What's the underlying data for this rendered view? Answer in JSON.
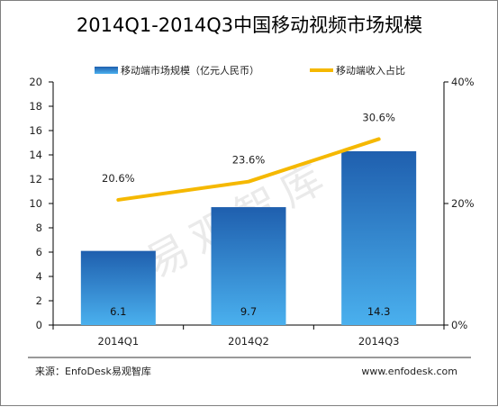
{
  "chart_data": {
    "type": "bar+line",
    "title": "2014Q1-2014Q3中国移动视频市场规模",
    "categories": [
      "2014Q1",
      "2014Q2",
      "2014Q3"
    ],
    "series": [
      {
        "name": "移动端市场规模（亿元人民币）",
        "kind": "bar",
        "axis": "left",
        "values": [
          6.1,
          9.7,
          14.3
        ],
        "labels": [
          "6.1",
          "9.7",
          "14.3"
        ]
      },
      {
        "name": "移动端收入占比",
        "kind": "line",
        "axis": "right",
        "values": [
          20.6,
          23.6,
          30.6
        ],
        "labels": [
          "20.6%",
          "23.6%",
          "30.6%"
        ]
      }
    ],
    "y_left": {
      "min": 0,
      "max": 20,
      "ticks": [
        "0",
        "2",
        "4",
        "6",
        "8",
        "10",
        "12",
        "14",
        "16",
        "18",
        "20"
      ]
    },
    "y_right": {
      "min": 0,
      "max": 40,
      "ticks": [
        "0%",
        "20%",
        "40%"
      ],
      "tick_values": [
        0,
        20,
        40
      ]
    },
    "grid": false,
    "legend_position": "top",
    "colors": {
      "bar_top": "#1f5fae",
      "bar_bottom": "#4ab0ee",
      "line": "#f5b800",
      "axis": "#000000"
    }
  },
  "watermark": "易观智库",
  "footer": {
    "source": "来源：EnfoDesk易观智库",
    "url": "www.enfodesk.com"
  }
}
